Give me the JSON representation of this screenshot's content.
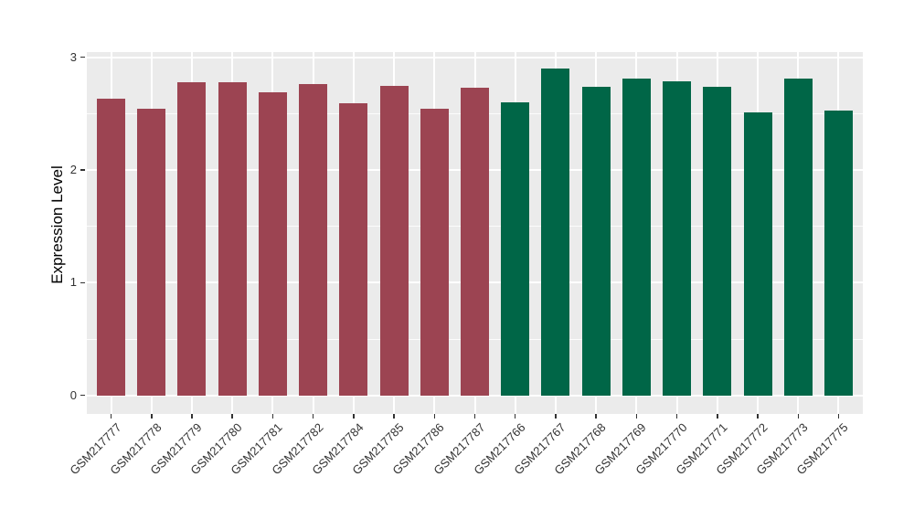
{
  "figure": {
    "background": "#FFFFFF",
    "panel_background": "#EBEBEB",
    "gridline_color": "#FFFFFF",
    "tick_mark_color": "#333333",
    "axis_text_color": "#333333",
    "axis_title_color": "#000000"
  },
  "chart_data": {
    "type": "bar",
    "title": "",
    "xlabel": "",
    "ylabel": "Expression Level",
    "ylim": [
      0,
      3.05
    ],
    "yticks": [
      0,
      1,
      2,
      3
    ],
    "yticks_minor": [
      0.5,
      1.5,
      2.5
    ],
    "grid": "white major+minor horizontal lines and major vertical lines on grey panel",
    "legend_position": "none",
    "bar_width_ratio": 0.7,
    "x_label_rotation_deg": 45,
    "series": [
      {
        "color": "#9C4452",
        "categories": [
          "GSM217777",
          "GSM217778",
          "GSM217779",
          "GSM217780",
          "GSM217781",
          "GSM217782",
          "GSM217784",
          "GSM217785",
          "GSM217786",
          "GSM217787"
        ],
        "values": [
          2.63,
          2.54,
          2.78,
          2.78,
          2.69,
          2.76,
          2.59,
          2.75,
          2.54,
          2.73
        ]
      },
      {
        "color": "#006647",
        "categories": [
          "GSM217766",
          "GSM217767",
          "GSM217768",
          "GSM217769",
          "GSM217770",
          "GSM217771",
          "GSM217772",
          "GSM217773",
          "GSM217775"
        ],
        "values": [
          2.6,
          2.9,
          2.74,
          2.81,
          2.79,
          2.74,
          2.51,
          2.81,
          2.53
        ]
      }
    ]
  }
}
